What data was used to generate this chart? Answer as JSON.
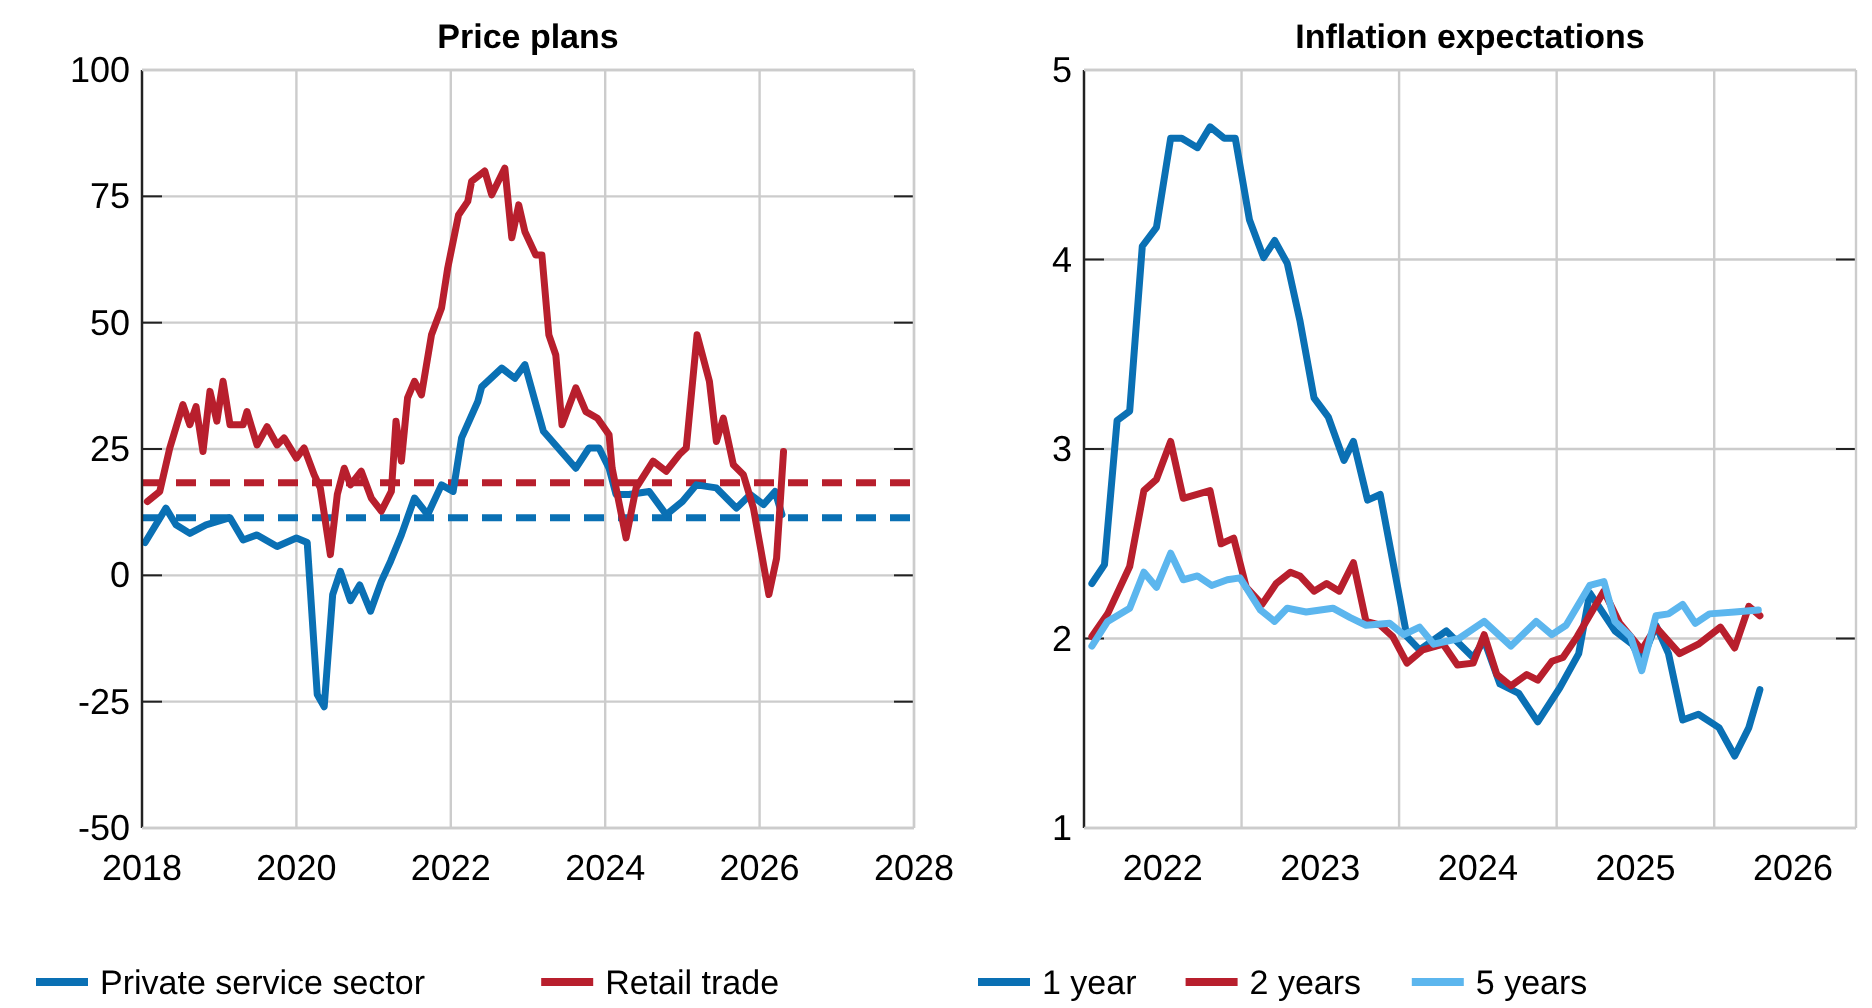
{
  "chart_data": [
    {
      "type": "line",
      "title": "Price plans",
      "xlim": [
        2018,
        2028
      ],
      "xticks": [
        2018,
        2020,
        2022,
        2024,
        2026,
        2028
      ],
      "ylim": [
        -50,
        100
      ],
      "yticks": [
        -50,
        -25,
        0,
        25,
        50,
        75,
        100
      ],
      "grid": true,
      "legend": "bottom",
      "line_style": "solid",
      "series": [
        {
          "name": "Private service sector",
          "color": "#0a70b4",
          "x": [
            2018.04,
            2018.31,
            2018.44,
            2018.62,
            2018.83,
            2019.14,
            2019.31,
            2019.49,
            2019.75,
            2020.0,
            2020.14,
            2020.27,
            2020.36,
            2020.47,
            2020.57,
            2020.7,
            2020.82,
            2020.96,
            2021.1,
            2021.22,
            2021.36,
            2021.53,
            2021.7,
            2021.88,
            2022.03,
            2022.14,
            2022.35,
            2022.4,
            2022.66,
            2022.83,
            2022.96,
            2023.2,
            2023.62,
            2023.79,
            2023.92,
            2024.05,
            2024.14,
            2024.31,
            2024.57,
            2024.79,
            2025.0,
            2025.18,
            2025.44,
            2025.7,
            2025.88,
            2026.05,
            2026.2,
            2026.29
          ],
          "values": [
            6.5,
            13.3,
            10,
            8.3,
            10,
            11.4,
            7,
            8,
            5.7,
            7.4,
            6.5,
            -23.6,
            -26,
            -3.8,
            0.8,
            -5,
            -1.9,
            -7.1,
            -1.2,
            2.8,
            8,
            15.3,
            12,
            17.9,
            16.6,
            27.2,
            34.4,
            37.3,
            41,
            39,
            41.7,
            28.5,
            21.2,
            25.2,
            25.2,
            21.2,
            16,
            16,
            16.6,
            12,
            14.6,
            17.9,
            17.3,
            13.3,
            16,
            14,
            16.6,
            12
          ]
        },
        {
          "name": "Retail trade",
          "color": "#b81f2d",
          "x": [
            2018.07,
            2018.23,
            2018.36,
            2018.53,
            2018.62,
            2018.7,
            2018.79,
            2018.88,
            2018.97,
            2019.05,
            2019.14,
            2019.31,
            2019.36,
            2019.49,
            2019.62,
            2019.75,
            2019.84,
            2020.0,
            2020.1,
            2020.23,
            2020.31,
            2020.44,
            2020.53,
            2020.62,
            2020.7,
            2020.84,
            2020.97,
            2021.1,
            2021.23,
            2021.29,
            2021.36,
            2021.44,
            2021.53,
            2021.62,
            2021.75,
            2021.88,
            2021.96,
            2022.1,
            2022.22,
            2022.27,
            2022.44,
            2022.53,
            2022.7,
            2022.79,
            2022.88,
            2022.96,
            2023.1,
            2023.18,
            2023.27,
            2023.36,
            2023.44,
            2023.62,
            2023.75,
            2023.9,
            2024.05,
            2024.09,
            2024.27,
            2024.4,
            2024.62,
            2024.79,
            2024.96,
            2025.05,
            2025.19,
            2025.35,
            2025.44,
            2025.53,
            2025.66,
            2025.79,
            2025.92,
            2026.12,
            2026.22,
            2026.31
          ],
          "values": [
            14.6,
            16.6,
            25.2,
            33.8,
            29.8,
            33.4,
            24.5,
            36.4,
            30.5,
            38.4,
            29.8,
            29.8,
            32.4,
            25.8,
            29.4,
            25.8,
            27.2,
            23.2,
            25.2,
            19.9,
            17.3,
            4.1,
            16,
            21.2,
            17.9,
            20.6,
            15.3,
            12.7,
            16.6,
            30.5,
            22.6,
            35.1,
            38.4,
            35.7,
            47.6,
            52.9,
            60.8,
            71.3,
            74,
            78,
            80,
            75.3,
            80.6,
            66.8,
            73.3,
            68,
            63.4,
            63.4,
            47.6,
            43.6,
            29.8,
            37.1,
            32.4,
            31.1,
            27.8,
            21.2,
            7.4,
            17.3,
            22.6,
            20.6,
            23.9,
            25.2,
            47.6,
            38.4,
            26.5,
            31.1,
            21.9,
            19.9,
            13.3,
            -3.8,
            3.4,
            24.5
          ]
        }
      ],
      "ref_lines": [
        {
          "axis": "y",
          "value": 18.3,
          "color": "#b81f2d",
          "line_style": "dashed"
        },
        {
          "axis": "y",
          "value": 11.4,
          "color": "#0a70b4",
          "line_style": "dashed"
        }
      ]
    },
    {
      "type": "line",
      "title": "Inflation expectations",
      "xlim": [
        2022,
        2026.9
      ],
      "xticks": [
        {
          "value": 2022,
          "label": null
        },
        {
          "value": 2022.5,
          "label": "2022"
        },
        {
          "value": 2023,
          "label": null
        },
        {
          "value": 2023.5,
          "label": "2023"
        },
        {
          "value": 2024,
          "label": null
        },
        {
          "value": 2024.5,
          "label": "2024"
        },
        {
          "value": 2025,
          "label": null
        },
        {
          "value": 2025.5,
          "label": "2025"
        },
        {
          "value": 2026,
          "label": null
        },
        {
          "value": 2026.5,
          "label": "2026"
        }
      ],
      "ylim": [
        1,
        5
      ],
      "yticks": [
        1,
        2,
        3,
        4,
        5
      ],
      "grid": true,
      "legend": "bottom",
      "line_style": "solid",
      "series": [
        {
          "name": "1 year",
          "color": "#0a70b4",
          "x": [
            2022.05,
            2022.13,
            2022.21,
            2022.29,
            2022.37,
            2022.46,
            2022.55,
            2022.62,
            2022.72,
            2022.8,
            2022.89,
            2022.96,
            2023.05,
            2023.14,
            2023.21,
            2023.29,
            2023.37,
            2023.46,
            2023.55,
            2023.65,
            2023.71,
            2023.8,
            2023.88,
            2024.05,
            2024.13,
            2024.3,
            2024.47,
            2024.54,
            2024.64,
            2024.76,
            2024.88,
            2025.02,
            2025.14,
            2025.21,
            2025.37,
            2025.48,
            2025.54,
            2025.63,
            2025.71,
            2025.8,
            2025.9,
            2026.03,
            2026.13,
            2026.22,
            2026.29
          ],
          "values": [
            2.29,
            2.39,
            3.15,
            3.2,
            4.07,
            4.17,
            4.64,
            4.64,
            4.59,
            4.7,
            4.64,
            4.64,
            4.21,
            4.01,
            4.1,
            3.98,
            3.68,
            3.27,
            3.17,
            2.94,
            3.04,
            2.73,
            2.76,
            2.01,
            1.94,
            2.04,
            1.9,
            1.99,
            1.76,
            1.71,
            1.56,
            1.74,
            1.92,
            2.24,
            2.04,
            1.97,
            1.88,
            2.07,
            1.92,
            1.57,
            1.6,
            1.53,
            1.38,
            1.53,
            1.73
          ]
        },
        {
          "name": "2 years",
          "color": "#b81f2d",
          "x": [
            2022.05,
            2022.15,
            2022.29,
            2022.38,
            2022.46,
            2022.55,
            2022.63,
            2022.8,
            2022.87,
            2022.95,
            2023.03,
            2023.13,
            2023.22,
            2023.31,
            2023.37,
            2023.46,
            2023.54,
            2023.62,
            2023.71,
            2023.79,
            2023.88,
            2023.96,
            2024.05,
            2024.15,
            2024.28,
            2024.37,
            2024.47,
            2024.54,
            2024.62,
            2024.71,
            2024.81,
            2024.88,
            2024.97,
            2025.04,
            2025.13,
            2025.3,
            2025.4,
            2025.47,
            2025.54,
            2025.63,
            2025.78,
            2025.9,
            2026.04,
            2026.13,
            2026.22,
            2026.29
          ],
          "values": [
            2.01,
            2.13,
            2.38,
            2.78,
            2.84,
            3.04,
            2.74,
            2.78,
            2.5,
            2.53,
            2.27,
            2.18,
            2.29,
            2.35,
            2.33,
            2.25,
            2.29,
            2.25,
            2.4,
            2.09,
            2.07,
            2.01,
            1.87,
            1.94,
            1.97,
            1.86,
            1.87,
            2.02,
            1.81,
            1.75,
            1.81,
            1.78,
            1.88,
            1.9,
            2.01,
            2.25,
            2.08,
            2.01,
            1.94,
            2.06,
            1.92,
            1.97,
            2.06,
            1.95,
            2.17,
            2.12
          ]
        },
        {
          "name": "5 years",
          "color": "#5cb6ee",
          "x": [
            2022.05,
            2022.15,
            2022.29,
            2022.38,
            2022.46,
            2022.55,
            2022.63,
            2022.72,
            2022.81,
            2022.91,
            2022.99,
            2023.12,
            2023.21,
            2023.29,
            2023.41,
            2023.58,
            2023.69,
            2023.79,
            2023.94,
            2024.03,
            2024.13,
            2024.22,
            2024.38,
            2024.54,
            2024.71,
            2024.87,
            2024.97,
            2025.06,
            2025.21,
            2025.3,
            2025.37,
            2025.47,
            2025.54,
            2025.63,
            2025.71,
            2025.8,
            2025.88,
            2025.97,
            2026.13,
            2026.28
          ],
          "values": [
            1.96,
            2.09,
            2.16,
            2.35,
            2.27,
            2.45,
            2.31,
            2.33,
            2.28,
            2.31,
            2.32,
            2.15,
            2.09,
            2.16,
            2.14,
            2.16,
            2.11,
            2.07,
            2.08,
            2.02,
            2.06,
            1.97,
            2.0,
            2.09,
            1.96,
            2.09,
            2.02,
            2.07,
            2.28,
            2.3,
            2.09,
            2.01,
            1.83,
            2.12,
            2.13,
            2.18,
            2.08,
            2.13,
            2.14,
            2.15
          ]
        }
      ]
    }
  ]
}
